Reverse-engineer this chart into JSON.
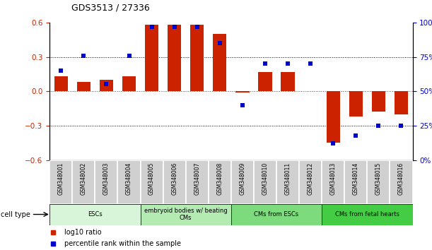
{
  "title": "GDS3513 / 27336",
  "samples": [
    "GSM348001",
    "GSM348002",
    "GSM348003",
    "GSM348004",
    "GSM348005",
    "GSM348006",
    "GSM348007",
    "GSM348008",
    "GSM348009",
    "GSM348010",
    "GSM348011",
    "GSM348012",
    "GSM348013",
    "GSM348014",
    "GSM348015",
    "GSM348016"
  ],
  "log10_ratio": [
    0.13,
    0.08,
    0.1,
    0.13,
    0.58,
    0.58,
    0.58,
    0.5,
    -0.01,
    0.17,
    0.17,
    0.0,
    -0.45,
    -0.22,
    -0.18,
    -0.2
  ],
  "percentile_rank": [
    65,
    76,
    55,
    76,
    97,
    97,
    97,
    85,
    40,
    70,
    70,
    70,
    12,
    18,
    25,
    25
  ],
  "bar_color": "#cc2200",
  "dot_color": "#0000cc",
  "ylim_left": [
    -0.6,
    0.6
  ],
  "ylim_right": [
    0,
    100
  ],
  "yticks_left": [
    -0.6,
    -0.3,
    0.0,
    0.3,
    0.6
  ],
  "yticks_right": [
    0,
    25,
    50,
    75,
    100
  ],
  "cell_types": [
    {
      "label": "ESCs",
      "start": 0,
      "end": 4,
      "color": "#d9f5d9"
    },
    {
      "label": "embryoid bodies w/ beating\nCMs",
      "start": 4,
      "end": 8,
      "color": "#b3ebb3"
    },
    {
      "label": "CMs from ESCs",
      "start": 8,
      "end": 12,
      "color": "#7ddb7d"
    },
    {
      "label": "CMs from fetal hearts",
      "start": 12,
      "end": 16,
      "color": "#44cc44"
    }
  ],
  "legend_bar_label": "log10 ratio",
  "legend_dot_label": "percentile rank within the sample",
  "background_color": "#ffffff"
}
